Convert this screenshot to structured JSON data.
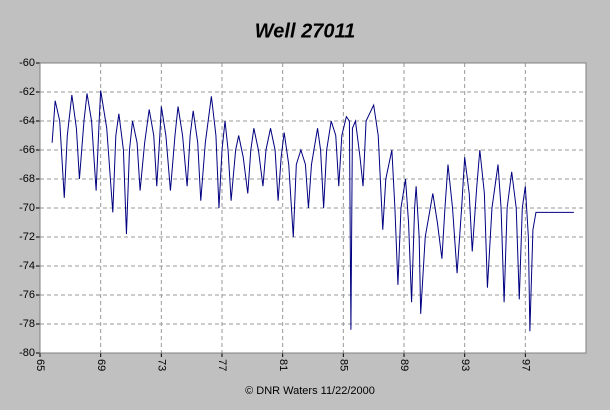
{
  "chart_data": {
    "type": "line",
    "title": "Well 27011",
    "footer": "© DNR Waters 11/22/2000",
    "xlim": [
      65,
      101
    ],
    "xticks": [
      65,
      69,
      73,
      77,
      81,
      85,
      89,
      93,
      97
    ],
    "ylim": [
      -80,
      -60
    ],
    "yticks": [
      -80,
      -78,
      -76,
      -74,
      -72,
      -70,
      -68,
      -66,
      -64,
      -62,
      -60
    ],
    "grid": true,
    "series": [
      {
        "color": "#000080",
        "x": [
          65.8,
          66.0,
          66.3,
          66.6,
          66.8,
          67.1,
          67.4,
          67.6,
          67.9,
          68.1,
          68.4,
          68.7,
          68.9,
          69.0,
          69.4,
          69.8,
          70.0,
          70.2,
          70.5,
          70.7,
          70.9,
          71.1,
          71.4,
          71.6,
          71.9,
          72.2,
          72.5,
          72.7,
          72.9,
          73.0,
          73.3,
          73.6,
          73.9,
          74.1,
          74.4,
          74.7,
          74.9,
          75.1,
          75.4,
          75.6,
          75.9,
          76.3,
          76.6,
          76.8,
          77.0,
          77.2,
          77.4,
          77.6,
          77.9,
          78.1,
          78.4,
          78.7,
          78.9,
          79.1,
          79.4,
          79.7,
          79.9,
          80.2,
          80.5,
          80.7,
          80.9,
          81.1,
          81.4,
          81.7,
          81.9,
          82.2,
          82.5,
          82.7,
          82.9,
          83.3,
          83.5,
          83.7,
          83.9,
          84.2,
          84.5,
          84.7,
          84.9,
          85.2,
          85.4,
          85.5,
          85.6,
          85.8,
          86.1,
          86.3,
          86.5,
          87.0,
          87.3,
          87.6,
          87.8,
          88.2,
          88.4,
          88.6,
          88.8,
          89.1,
          89.3,
          89.5,
          89.7,
          89.8,
          90.0,
          90.1,
          90.4,
          90.9,
          91.2,
          91.5,
          91.7,
          91.9,
          92.2,
          92.5,
          92.8,
          93.0,
          93.3,
          93.5,
          93.8,
          94.0,
          94.3,
          94.5,
          94.8,
          95.2,
          95.4,
          95.6,
          95.8,
          96.1,
          96.4,
          96.6,
          96.8,
          97.0,
          97.2,
          97.3,
          97.5,
          97.7,
          100.2
        ],
        "values": [
          -65.5,
          -62.6,
          -64,
          -69.3,
          -65,
          -62.2,
          -64.5,
          -68,
          -64,
          -62.1,
          -64,
          -68.8,
          -64,
          -61.9,
          -64.5,
          -70.3,
          -65,
          -63.5,
          -66,
          -71.8,
          -66,
          -64,
          -65.5,
          -68.8,
          -65.5,
          -63.2,
          -65,
          -68.5,
          -65,
          -63,
          -65,
          -68.8,
          -65,
          -63,
          -65,
          -68.5,
          -65,
          -63.3,
          -65.5,
          -69.5,
          -65.5,
          -62.3,
          -65,
          -70,
          -66,
          -64,
          -66,
          -69.5,
          -66,
          -65,
          -66.5,
          -69,
          -66,
          -64.5,
          -66,
          -68.5,
          -66,
          -64.5,
          -66,
          -69.5,
          -66.5,
          -64.8,
          -67,
          -72,
          -67,
          -66,
          -67,
          -70,
          -67,
          -64.5,
          -66,
          -70,
          -66,
          -64,
          -65,
          -68.5,
          -65,
          -63.7,
          -64,
          -78.4,
          -64.5,
          -64,
          -66.5,
          -68.5,
          -64,
          -62.9,
          -65,
          -71.5,
          -68,
          -66,
          -70,
          -75.3,
          -70,
          -68,
          -71,
          -76.5,
          -70,
          -68.5,
          -72,
          -77.3,
          -72,
          -69,
          -71,
          -73.5,
          -70,
          -67,
          -70,
          -74.5,
          -70,
          -66.5,
          -69,
          -73,
          -68.5,
          -66,
          -69,
          -75.5,
          -70,
          -67,
          -70,
          -76.5,
          -70,
          -67.5,
          -70,
          -76.3,
          -70,
          -68.5,
          -72,
          -78.5,
          -71.5,
          -70.3,
          -70.3
        ]
      }
    ]
  }
}
